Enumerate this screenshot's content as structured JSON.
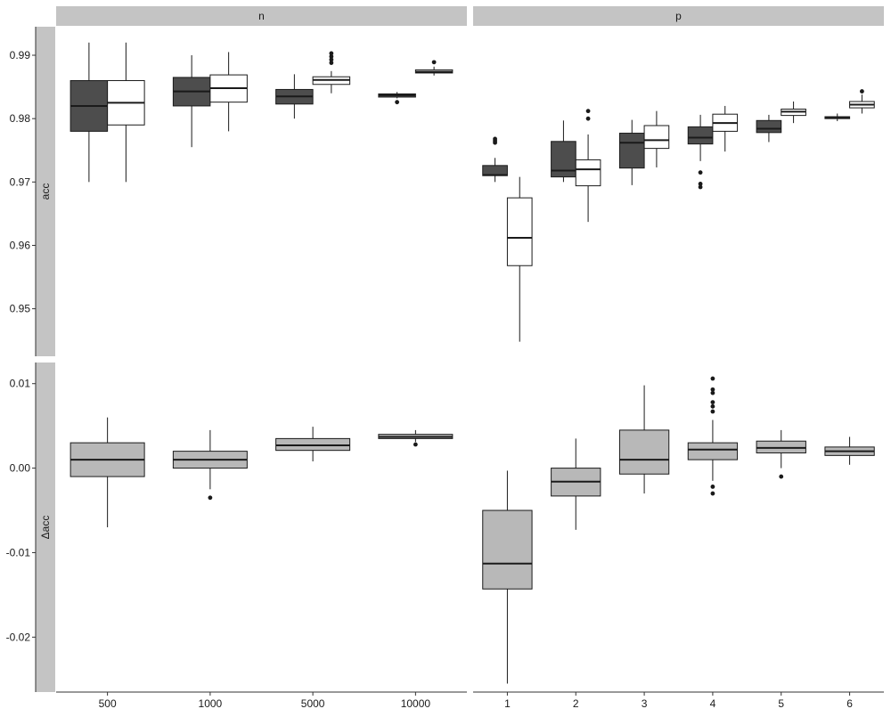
{
  "colors": {
    "strip": "#c4c4c4",
    "dark_fill": "#4d4d4d",
    "light_fill": "#ffffff",
    "diff_fill": "#b8b8b8",
    "line": "#1a1a1a",
    "axis": "#333333",
    "text": "#1a1a1a"
  },
  "chart_data": {
    "type": "box",
    "facet_columns": [
      "n",
      "p"
    ],
    "facet_rows": [
      "acc",
      "Δacc"
    ],
    "x_axis": {
      "n": [
        "500",
        "1000",
        "5000",
        "10000"
      ],
      "p": [
        "1",
        "2",
        "3",
        "4",
        "5",
        "6"
      ]
    },
    "y_axis": {
      "acc": {
        "ylim": [
          0.9425,
          0.9945
        ],
        "ticks": [
          "0.95",
          "0.96",
          "0.97",
          "0.98",
          "0.99"
        ]
      },
      "Δacc": {
        "ylim": [
          -0.0265,
          0.0125
        ],
        "ticks": [
          "-0.02",
          "-0.01",
          "0.00",
          "0.01"
        ]
      }
    },
    "grid": false,
    "legend": "none",
    "panels": [
      {
        "col": "n",
        "row": "acc",
        "boxes": [
          {
            "x": "500",
            "group": "dark",
            "whisker_low": 0.97,
            "q1": 0.978,
            "median": 0.982,
            "q3": 0.986,
            "whisker_high": 0.992,
            "outliers": []
          },
          {
            "x": "500",
            "group": "light",
            "whisker_low": 0.97,
            "q1": 0.979,
            "median": 0.9825,
            "q3": 0.986,
            "whisker_high": 0.992,
            "outliers": []
          },
          {
            "x": "1000",
            "group": "dark",
            "whisker_low": 0.9755,
            "q1": 0.982,
            "median": 0.9843,
            "q3": 0.9865,
            "whisker_high": 0.99,
            "outliers": []
          },
          {
            "x": "1000",
            "group": "light",
            "whisker_low": 0.978,
            "q1": 0.9826,
            "median": 0.9848,
            "q3": 0.9869,
            "whisker_high": 0.9905,
            "outliers": []
          },
          {
            "x": "5000",
            "group": "dark",
            "whisker_low": 0.98,
            "q1": 0.9823,
            "median": 0.9835,
            "q3": 0.9846,
            "whisker_high": 0.987,
            "outliers": []
          },
          {
            "x": "5000",
            "group": "light",
            "whisker_low": 0.984,
            "q1": 0.9854,
            "median": 0.9861,
            "q3": 0.9866,
            "whisker_high": 0.9875,
            "outliers": [
              0.9888,
              0.9893,
              0.9898,
              0.9903
            ]
          },
          {
            "x": "10000",
            "group": "dark",
            "whisker_low": 0.9832,
            "q1": 0.9834,
            "median": 0.9837,
            "q3": 0.9839,
            "whisker_high": 0.9842,
            "outliers": [
              0.9826
            ]
          },
          {
            "x": "10000",
            "group": "light",
            "whisker_low": 0.9868,
            "q1": 0.9872,
            "median": 0.9874,
            "q3": 0.9877,
            "whisker_high": 0.9882,
            "outliers": [
              0.9889
            ]
          }
        ]
      },
      {
        "col": "p",
        "row": "acc",
        "boxes": [
          {
            "x": "1",
            "group": "dark",
            "whisker_low": 0.97,
            "q1": 0.971,
            "median": 0.9711,
            "q3": 0.9726,
            "whisker_high": 0.9738,
            "outliers": [
              0.9762,
              0.9765,
              0.9768
            ]
          },
          {
            "x": "1",
            "group": "light",
            "whisker_low": 0.9448,
            "q1": 0.9568,
            "median": 0.9612,
            "q3": 0.9675,
            "whisker_high": 0.9708,
            "outliers": []
          },
          {
            "x": "2",
            "group": "dark",
            "whisker_low": 0.97,
            "q1": 0.9708,
            "median": 0.9718,
            "q3": 0.9764,
            "whisker_high": 0.9797,
            "outliers": []
          },
          {
            "x": "2",
            "group": "light",
            "whisker_low": 0.9637,
            "q1": 0.9694,
            "median": 0.972,
            "q3": 0.9735,
            "whisker_high": 0.9775,
            "outliers": [
              0.98,
              0.9812
            ]
          },
          {
            "x": "3",
            "group": "dark",
            "whisker_low": 0.9695,
            "q1": 0.9722,
            "median": 0.9762,
            "q3": 0.9777,
            "whisker_high": 0.9798,
            "outliers": []
          },
          {
            "x": "3",
            "group": "light",
            "whisker_low": 0.9723,
            "q1": 0.9753,
            "median": 0.9766,
            "q3": 0.9789,
            "whisker_high": 0.9812,
            "outliers": []
          },
          {
            "x": "4",
            "group": "dark",
            "whisker_low": 0.9733,
            "q1": 0.976,
            "median": 0.977,
            "q3": 0.9787,
            "whisker_high": 0.9806,
            "outliers": [
              0.9715,
              0.9697,
              0.9692
            ]
          },
          {
            "x": "4",
            "group": "light",
            "whisker_low": 0.9748,
            "q1": 0.978,
            "median": 0.9793,
            "q3": 0.9807,
            "whisker_high": 0.982,
            "outliers": []
          },
          {
            "x": "5",
            "group": "dark",
            "whisker_low": 0.9763,
            "q1": 0.9778,
            "median": 0.9784,
            "q3": 0.9797,
            "whisker_high": 0.9806,
            "outliers": []
          },
          {
            "x": "5",
            "group": "light",
            "whisker_low": 0.9793,
            "q1": 0.9805,
            "median": 0.9811,
            "q3": 0.9815,
            "whisker_high": 0.9827,
            "outliers": []
          },
          {
            "x": "6",
            "group": "dark",
            "whisker_low": 0.9796,
            "q1": 0.98,
            "median": 0.9802,
            "q3": 0.9803,
            "whisker_high": 0.9808,
            "outliers": []
          },
          {
            "x": "6",
            "group": "light",
            "whisker_low": 0.9808,
            "q1": 0.9817,
            "median": 0.9822,
            "q3": 0.9827,
            "whisker_high": 0.9838,
            "outliers": [
              0.9843
            ]
          }
        ]
      },
      {
        "col": "n",
        "row": "Δacc",
        "boxes": [
          {
            "x": "500",
            "group": "diff",
            "whisker_low": -0.007,
            "q1": -0.001,
            "median": 0.001,
            "q3": 0.003,
            "whisker_high": 0.006,
            "outliers": []
          },
          {
            "x": "1000",
            "group": "diff",
            "whisker_low": -0.0025,
            "q1": 0.0,
            "median": 0.001,
            "q3": 0.002,
            "whisker_high": 0.0045,
            "outliers": [
              -0.0035
            ]
          },
          {
            "x": "5000",
            "group": "diff",
            "whisker_low": 0.0008,
            "q1": 0.0021,
            "median": 0.0027,
            "q3": 0.0035,
            "whisker_high": 0.0049,
            "outliers": []
          },
          {
            "x": "10000",
            "group": "diff",
            "whisker_low": 0.0031,
            "q1": 0.0035,
            "median": 0.0037,
            "q3": 0.004,
            "whisker_high": 0.0045,
            "outliers": [
              0.0028
            ]
          }
        ]
      },
      {
        "col": "p",
        "row": "Δacc",
        "boxes": [
          {
            "x": "1",
            "group": "diff",
            "whisker_low": -0.0255,
            "q1": -0.0143,
            "median": -0.0113,
            "q3": -0.005,
            "whisker_high": -0.0003,
            "outliers": []
          },
          {
            "x": "2",
            "group": "diff",
            "whisker_low": -0.0073,
            "q1": -0.0033,
            "median": -0.0016,
            "q3": 0.0,
            "whisker_high": 0.0035,
            "outliers": []
          },
          {
            "x": "3",
            "group": "diff",
            "whisker_low": -0.003,
            "q1": -0.0007,
            "median": 0.001,
            "q3": 0.0045,
            "whisker_high": 0.0098,
            "outliers": []
          },
          {
            "x": "4",
            "group": "diff",
            "whisker_low": -0.0015,
            "q1": 0.001,
            "median": 0.0022,
            "q3": 0.003,
            "whisker_high": 0.0057,
            "outliers": [
              0.0067,
              0.0073,
              0.0078,
              0.0089,
              0.0093,
              0.0106,
              -0.0022,
              -0.003
            ]
          },
          {
            "x": "5",
            "group": "diff",
            "whisker_low": 0.0,
            "q1": 0.0018,
            "median": 0.0024,
            "q3": 0.0032,
            "whisker_high": 0.0045,
            "outliers": [
              -0.001
            ]
          },
          {
            "x": "6",
            "group": "diff",
            "whisker_low": 0.0004,
            "q1": 0.0015,
            "median": 0.002,
            "q3": 0.0025,
            "whisker_high": 0.0037,
            "outliers": []
          }
        ]
      }
    ]
  }
}
